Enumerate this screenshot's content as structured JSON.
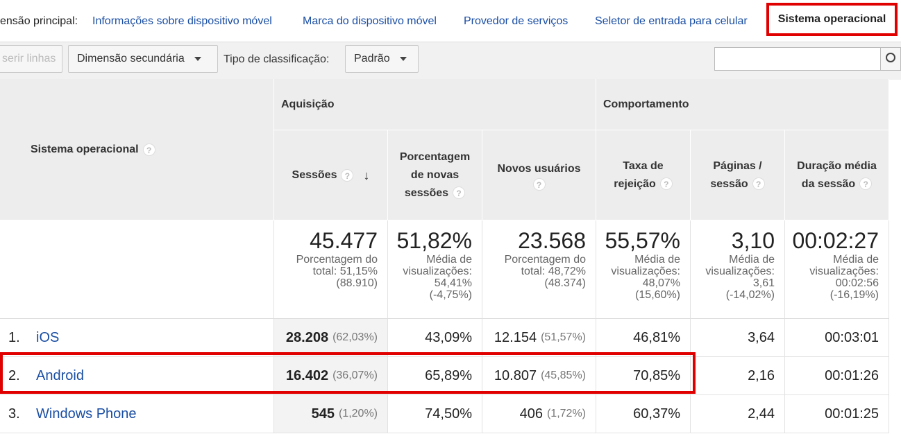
{
  "dimension_bar": {
    "label": "ensão principal:",
    "links": [
      "Informações sobre dispositivo móvel",
      "Marca do dispositivo móvel",
      "Provedor de serviços",
      "Seletor de entrada para celular"
    ],
    "active": "Sistema operacional"
  },
  "toolbar": {
    "insert_rows": "serir linhas",
    "secondary_dimension": "Dimensão secundária",
    "sort_label": "Tipo de classificação:",
    "sort_value": "Padrão",
    "search_placeholder": "",
    "search_icon": "search-icon"
  },
  "table": {
    "first_col_header": "Sistema operacional",
    "group_acquisition": "Aquisição",
    "group_behavior": "Comportamento",
    "columns": {
      "sessions": "Sessões",
      "pct_new_1": "Porcentagem",
      "pct_new_2": "de novas",
      "pct_new_3": "sessões",
      "new_users": "Novos usuários",
      "bounce_1": "Taxa de",
      "bounce_2": "rejeição",
      "pages_1": "Páginas /",
      "pages_2": "sessão",
      "duration_1": "Duração média",
      "duration_2": "da sessão"
    },
    "totals": {
      "sessions": {
        "value": "45.477",
        "l1": "Porcentagem do",
        "l2": "total: 51,15%",
        "l3": "(88.910)"
      },
      "pct_new": {
        "value": "51,82%",
        "l1": "Média de",
        "l2": "visualizações:",
        "l3": "54,41%",
        "l4": "(-4,75%)"
      },
      "new_users": {
        "value": "23.568",
        "l1": "Porcentagem do",
        "l2": "total: 48,72%",
        "l3": "(48.374)"
      },
      "bounce": {
        "value": "55,57%",
        "l1": "Média de",
        "l2": "visualizações:",
        "l3": "48,07%",
        "l4": "(15,60%)"
      },
      "pages": {
        "value": "3,10",
        "l1": "Média de",
        "l2": "visualizações:",
        "l3": "3,61",
        "l4": "(-14,02%)"
      },
      "duration": {
        "value": "00:02:27",
        "l1": "Média de",
        "l2": "visualizações:",
        "l3": "00:02:56",
        "l4": "(-16,19%)"
      }
    },
    "rows": [
      {
        "num": "1.",
        "name": "iOS",
        "sessions": "28.208",
        "sessions_pct": "(62,03%)",
        "pct_new": "43,09%",
        "new_users": "12.154",
        "new_users_pct": "(51,57%)",
        "bounce": "46,81%",
        "pages": "3,64",
        "duration": "00:03:01"
      },
      {
        "num": "2.",
        "name": "Android",
        "sessions": "16.402",
        "sessions_pct": "(36,07%)",
        "pct_new": "65,89%",
        "new_users": "10.807",
        "new_users_pct": "(45,85%)",
        "bounce": "70,85%",
        "pages": "2,16",
        "duration": "00:01:26"
      },
      {
        "num": "3.",
        "name": "Windows Phone",
        "sessions": "545",
        "sessions_pct": "(1,20%)",
        "pct_new": "74,50%",
        "new_users": "406",
        "new_users_pct": "(1,72%)",
        "bounce": "60,37%",
        "pages": "2,44",
        "duration": "00:01:25"
      }
    ]
  },
  "colors": {
    "link": "#1a4ea3",
    "highlight": "#e00000",
    "header_bg": "#ededed"
  }
}
